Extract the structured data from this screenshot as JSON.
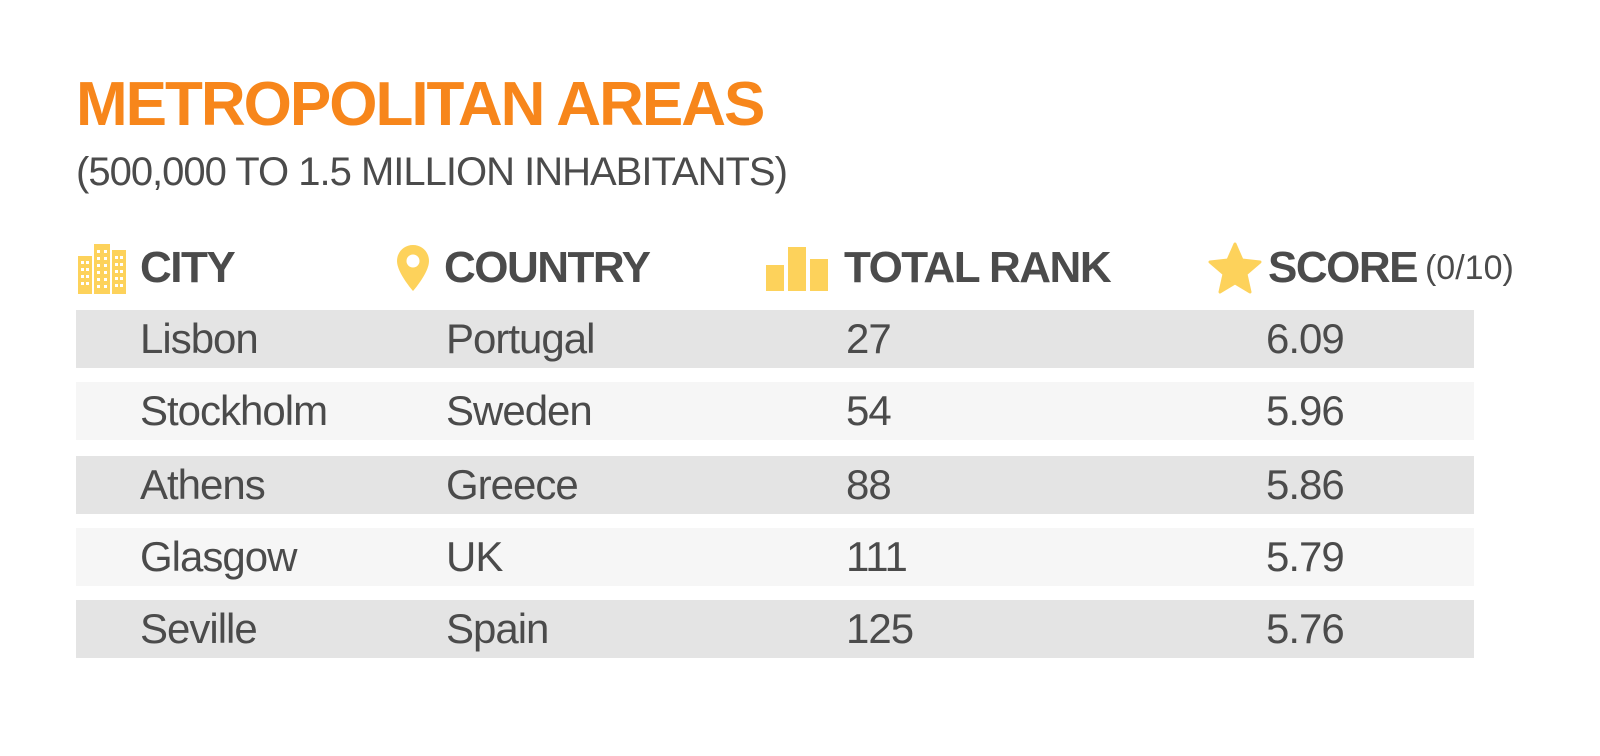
{
  "title": "METROPOLITAN AREAS",
  "subtitle": "(500,000 TO 1.5 MILLION INHABITANTS)",
  "colors": {
    "accent_orange": "#f7861b",
    "icon_yellow": "#fdd25b",
    "text_dark": "#4b4b4b",
    "row_dark": "#e4e4e4",
    "row_light": "#f6f6f6"
  },
  "columns": [
    {
      "label": "CITY",
      "icon": "buildings-icon"
    },
    {
      "label": "COUNTRY",
      "icon": "location-pin-icon"
    },
    {
      "label": "TOTAL RANK",
      "icon": "bar-chart-icon"
    },
    {
      "label": "SCORE",
      "unit": "(0/10)",
      "icon": "star-icon"
    }
  ],
  "rows": [
    {
      "city": "Lisbon",
      "country": "Portugal",
      "rank": "27",
      "score": "6.09"
    },
    {
      "city": "Stockholm",
      "country": "Sweden",
      "rank": "54",
      "score": "5.96"
    },
    {
      "city": "Athens",
      "country": "Greece",
      "rank": "88",
      "score": "5.86"
    },
    {
      "city": "Glasgow",
      "country": "UK",
      "rank": "111",
      "score": "5.79"
    },
    {
      "city": "Seville",
      "country": "Spain",
      "rank": "125",
      "score": "5.76"
    }
  ]
}
